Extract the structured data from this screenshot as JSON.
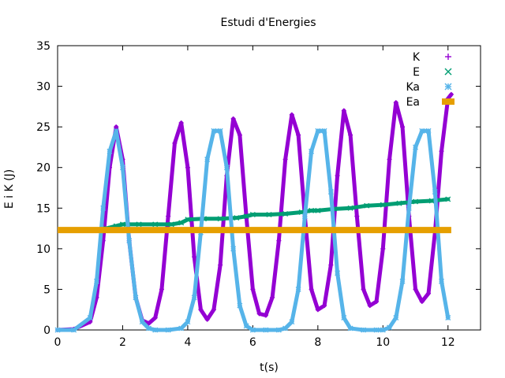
{
  "chart_data": {
    "type": "scatter",
    "title": "Estudi d'Energies",
    "xlabel": "t(s)",
    "ylabel": "E i K (J)",
    "xlim": [
      0,
      13
    ],
    "ylim": [
      0,
      35
    ],
    "xticks": [
      0,
      2,
      4,
      6,
      8,
      10,
      12
    ],
    "yticks": [
      0,
      5,
      10,
      15,
      20,
      25,
      30,
      35
    ],
    "grid": false,
    "legend_position": "top-right",
    "series": [
      {
        "name": "K",
        "marker": "plus",
        "color": "#9400D3",
        "x": [
          0.0,
          0.5,
          1.0,
          1.2,
          1.4,
          1.6,
          1.8,
          2.0,
          2.2,
          2.4,
          2.6,
          2.8,
          3.0,
          3.2,
          3.4,
          3.6,
          3.8,
          4.0,
          4.2,
          4.4,
          4.6,
          4.8,
          5.0,
          5.2,
          5.4,
          5.6,
          5.8,
          6.0,
          6.2,
          6.4,
          6.6,
          6.8,
          7.0,
          7.2,
          7.4,
          7.6,
          7.8,
          8.0,
          8.2,
          8.4,
          8.6,
          8.8,
          9.0,
          9.2,
          9.4,
          9.6,
          9.8,
          10.0,
          10.2,
          10.4,
          10.6,
          10.8,
          11.0,
          11.2,
          11.4,
          11.6,
          11.8,
          12.0,
          12.1
        ],
        "y": [
          0.0,
          0.1,
          1.0,
          4.0,
          11.0,
          20.0,
          25.0,
          21.0,
          11.0,
          4.0,
          1.2,
          0.8,
          1.5,
          5.0,
          14.0,
          23.0,
          25.5,
          20.0,
          9.0,
          2.5,
          1.3,
          2.5,
          8.0,
          19.0,
          26.0,
          24.0,
          14.0,
          5.0,
          2.0,
          1.8,
          4.0,
          11.0,
          21.0,
          26.5,
          24.0,
          14.0,
          5.0,
          2.5,
          3.0,
          8.0,
          19.0,
          27.0,
          24.0,
          14.0,
          5.0,
          3.0,
          3.5,
          10.0,
          21.0,
          28.0,
          25.0,
          14.0,
          5.0,
          3.5,
          4.5,
          12.0,
          22.0,
          28.5,
          29.0
        ]
      },
      {
        "name": "E",
        "marker": "cross",
        "color": "#009E73",
        "x": [
          1.5,
          1.8,
          2.0,
          2.5,
          3.0,
          3.5,
          3.8,
          4.0,
          4.5,
          5.0,
          5.5,
          5.8,
          6.0,
          6.5,
          7.0,
          7.5,
          7.8,
          8.0,
          8.5,
          9.0,
          9.5,
          10.0,
          10.5,
          11.0,
          11.5,
          12.0
        ],
        "y": [
          12.5,
          12.8,
          13.0,
          13.0,
          13.0,
          13.0,
          13.2,
          13.6,
          13.7,
          13.7,
          13.8,
          14.0,
          14.2,
          14.2,
          14.3,
          14.5,
          14.7,
          14.7,
          14.9,
          15.0,
          15.3,
          15.4,
          15.6,
          15.8,
          15.9,
          16.1
        ]
      },
      {
        "name": "Ka",
        "marker": "star",
        "color": "#56B4E9",
        "x": [
          0.0,
          0.5,
          1.0,
          1.2,
          1.4,
          1.6,
          1.8,
          2.0,
          2.2,
          2.4,
          2.6,
          2.8,
          3.0,
          3.4,
          3.8,
          4.0,
          4.2,
          4.4,
          4.6,
          4.8,
          5.0,
          5.2,
          5.4,
          5.6,
          5.8,
          6.0,
          6.4,
          6.8,
          7.0,
          7.2,
          7.4,
          7.6,
          7.8,
          8.0,
          8.2,
          8.4,
          8.6,
          8.8,
          9.0,
          9.4,
          9.8,
          10.0,
          10.2,
          10.4,
          10.6,
          10.8,
          11.0,
          11.2,
          11.4,
          11.6,
          11.8,
          12.0
        ],
        "y": [
          0.0,
          0.0,
          1.5,
          6.0,
          15.0,
          22.0,
          24.5,
          20.0,
          11.0,
          4.0,
          1.0,
          0.2,
          0.0,
          0.0,
          0.2,
          1.0,
          4.0,
          12.0,
          21.0,
          24.5,
          24.5,
          20.0,
          10.0,
          3.0,
          0.5,
          0.0,
          0.0,
          0.0,
          0.2,
          1.0,
          5.0,
          14.0,
          22.0,
          24.5,
          24.5,
          17.0,
          7.0,
          1.5,
          0.2,
          0.0,
          0.0,
          0.0,
          0.3,
          1.5,
          6.0,
          15.0,
          22.5,
          24.5,
          24.5,
          17.0,
          6.0,
          1.5
        ]
      },
      {
        "name": "Ea",
        "marker": "plus",
        "color": "#E69F00",
        "x": [
          0.0,
          12.1
        ],
        "y": [
          12.3,
          12.3
        ]
      }
    ]
  }
}
